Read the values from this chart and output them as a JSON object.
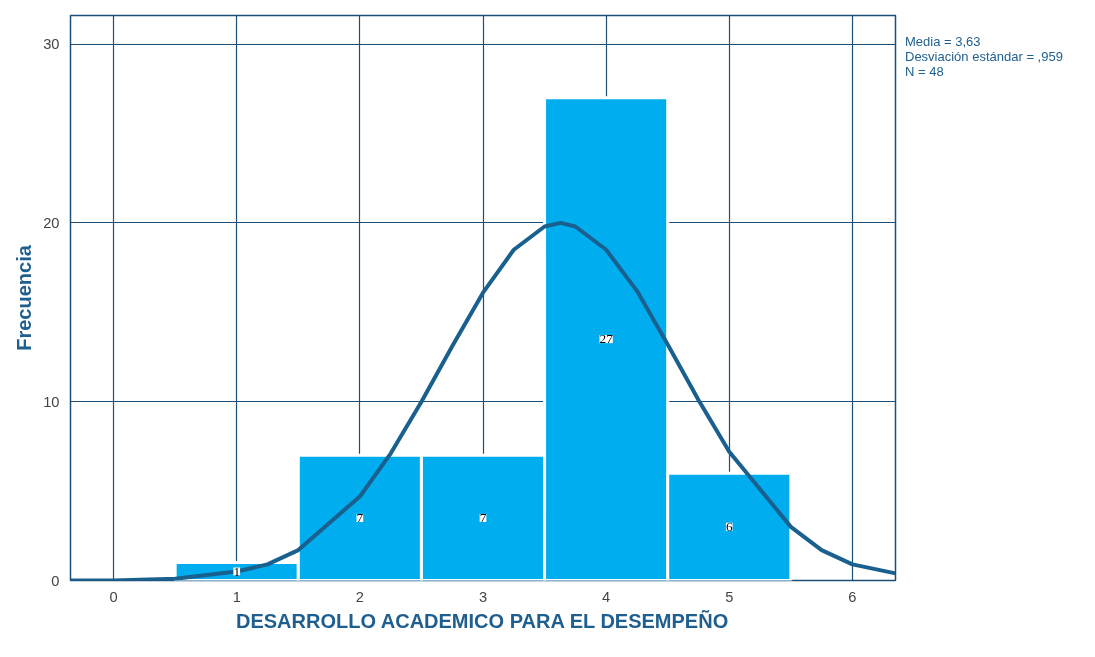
{
  "chart_data": {
    "type": "histogram",
    "xlabel": "DESARROLLO ACADEMICO PARA EL DESEMPEÑO",
    "ylabel": "Frecuencia",
    "bins": [
      0.5,
      1.5,
      2.5,
      3.5,
      4.5,
      5.5
    ],
    "values": [
      1,
      7,
      7,
      27,
      6
    ],
    "color": "#00aeef",
    "series": [
      {
        "type": "line",
        "color": "#19608f",
        "x": [
          -0.35,
          0,
          0.5,
          1,
          1.25,
          1.5,
          2,
          2.25,
          2.5,
          2.75,
          3,
          3.25,
          3.5,
          3.63,
          3.75,
          4,
          4.25,
          4.5,
          4.75,
          5,
          5.5,
          5.75,
          6,
          6.35
        ],
        "values": [
          0.0,
          0.0,
          0.1,
          0.5,
          0.9,
          1.7,
          4.7,
          7.1,
          10.0,
          13.1,
          16.1,
          18.5,
          19.8,
          20.0,
          19.8,
          18.5,
          16.2,
          13.2,
          10.1,
          7.2,
          3.0,
          1.7,
          0.9,
          0.4
        ]
      }
    ],
    "annotations": [
      "Media = 3,63",
      "Desviación estándar = ,959",
      "N = 48"
    ],
    "xlim": [
      -0.35,
      6.35
    ],
    "ylim": [
      0,
      31.6
    ],
    "xticks": [
      0,
      1,
      2,
      3,
      4,
      5,
      6
    ],
    "yticks": [
      0,
      10,
      20,
      30
    ],
    "grid": true,
    "value_labels": [
      "1",
      "7",
      "7",
      "27",
      "6"
    ]
  }
}
